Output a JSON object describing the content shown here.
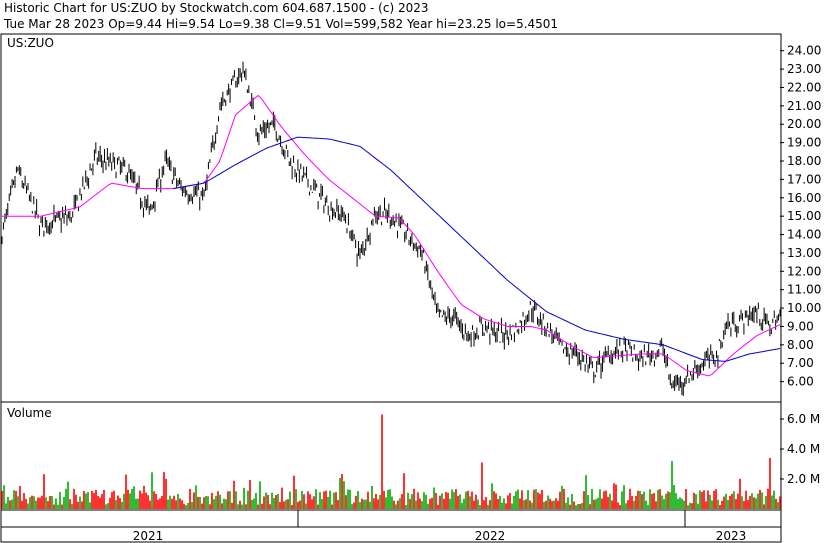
{
  "header": {
    "line1": "Historic Chart for US:ZUO by Stockwatch.com 604.687.1500 - (c) 2023",
    "line2": "Tue Mar 28 2023  Op=9.44  Hi=9.54  Lo=9.38  Cl=9.51  Vol=599,582  Year hi=23.25  lo=5.4501"
  },
  "chart_data": [
    {
      "type": "candlestick",
      "title": "US:ZUO",
      "ylim": [
        5.0,
        24.8
      ],
      "y_ticks": [
        "24.00",
        "23.00",
        "22.00",
        "21.00",
        "20.00",
        "19.00",
        "18.00",
        "17.00",
        "16.00",
        "15.00",
        "14.00",
        "13.00",
        "12.00",
        "11.00",
        "10.00",
        "9.00",
        "8.00",
        "7.00",
        "6.00"
      ],
      "grid": false,
      "x_periods": [
        "2021",
        "2022",
        "2023"
      ],
      "close_anchors": [
        [
          0,
          14.0
        ],
        [
          0.02,
          17.5
        ],
        [
          0.05,
          14.5
        ],
        [
          0.09,
          15.0
        ],
        [
          0.12,
          18.2
        ],
        [
          0.16,
          17.5
        ],
        [
          0.19,
          15.2
        ],
        [
          0.21,
          18.0
        ],
        [
          0.23,
          16.5
        ],
        [
          0.26,
          16.0
        ],
        [
          0.28,
          21.0
        ],
        [
          0.31,
          23.0
        ],
        [
          0.33,
          19.5
        ],
        [
          0.35,
          20.0
        ],
        [
          0.37,
          18.0
        ],
        [
          0.39,
          17.0
        ],
        [
          0.42,
          15.5
        ],
        [
          0.44,
          15.0
        ],
        [
          0.46,
          12.8
        ],
        [
          0.48,
          15.2
        ],
        [
          0.5,
          15.0
        ],
        [
          0.52,
          14.0
        ],
        [
          0.54,
          13.0
        ],
        [
          0.56,
          9.5
        ],
        [
          0.58,
          9.5
        ],
        [
          0.6,
          8.5
        ],
        [
          0.62,
          9.0
        ],
        [
          0.64,
          8.5
        ],
        [
          0.66,
          8.8
        ],
        [
          0.68,
          10.0
        ],
        [
          0.7,
          9.0
        ],
        [
          0.72,
          7.8
        ],
        [
          0.74,
          7.5
        ],
        [
          0.76,
          6.5
        ],
        [
          0.78,
          7.5
        ],
        [
          0.8,
          7.8
        ],
        [
          0.82,
          7.2
        ],
        [
          0.84,
          7.6
        ],
        [
          0.85,
          7.8
        ],
        [
          0.86,
          5.8
        ],
        [
          0.88,
          6.2
        ],
        [
          0.9,
          7.0
        ],
        [
          0.92,
          7.5
        ],
        [
          0.93,
          9.0
        ],
        [
          0.95,
          9.3
        ],
        [
          0.97,
          9.8
        ],
        [
          0.985,
          9.0
        ],
        [
          1.0,
          9.5
        ]
      ],
      "ma_short_anchors": [
        [
          0,
          15.0
        ],
        [
          0.05,
          15.0
        ],
        [
          0.1,
          15.5
        ],
        [
          0.14,
          16.8
        ],
        [
          0.18,
          16.5
        ],
        [
          0.22,
          16.5
        ],
        [
          0.26,
          16.8
        ],
        [
          0.28,
          18.0
        ],
        [
          0.3,
          20.5
        ],
        [
          0.33,
          21.6
        ],
        [
          0.36,
          19.8
        ],
        [
          0.39,
          18.3
        ],
        [
          0.42,
          17.0
        ],
        [
          0.45,
          16.0
        ],
        [
          0.48,
          15.0
        ],
        [
          0.51,
          14.9
        ],
        [
          0.53,
          14.0
        ],
        [
          0.56,
          12.0
        ],
        [
          0.59,
          10.2
        ],
        [
          0.62,
          9.4
        ],
        [
          0.65,
          9.0
        ],
        [
          0.68,
          9.0
        ],
        [
          0.7,
          8.8
        ],
        [
          0.73,
          8.0
        ],
        [
          0.76,
          7.3
        ],
        [
          0.79,
          7.4
        ],
        [
          0.82,
          7.5
        ],
        [
          0.85,
          7.5
        ],
        [
          0.88,
          6.6
        ],
        [
          0.91,
          6.3
        ],
        [
          0.94,
          7.5
        ],
        [
          0.97,
          8.5
        ],
        [
          1.0,
          9.1
        ]
      ],
      "ma_long_anchors": [
        [
          0.22,
          16.5
        ],
        [
          0.26,
          16.8
        ],
        [
          0.3,
          17.8
        ],
        [
          0.34,
          18.7
        ],
        [
          0.38,
          19.3
        ],
        [
          0.42,
          19.2
        ],
        [
          0.46,
          18.8
        ],
        [
          0.5,
          17.5
        ],
        [
          0.55,
          15.5
        ],
        [
          0.6,
          13.5
        ],
        [
          0.65,
          11.5
        ],
        [
          0.7,
          9.8
        ],
        [
          0.75,
          8.8
        ],
        [
          0.8,
          8.3
        ],
        [
          0.85,
          8.0
        ],
        [
          0.9,
          7.2
        ],
        [
          0.93,
          7.1
        ],
        [
          0.96,
          7.5
        ],
        [
          1.0,
          7.8
        ]
      ],
      "colors": {
        "candle": "#000000",
        "ma_short": "#ff00ff",
        "ma_long": "#0000cc"
      }
    },
    {
      "type": "bar",
      "title": "Volume",
      "ylim": [
        0,
        7.0
      ],
      "y_ticks": [
        "6.0 M",
        "4.0 M",
        "2.0 M"
      ],
      "spikes": [
        [
          0.488,
          6.3
        ],
        [
          0.862,
          3.2
        ],
        [
          0.986,
          3.4
        ],
        [
          0.617,
          3.1
        ]
      ],
      "colors": {
        "up": "#00aa00",
        "down": "#ff0000"
      }
    }
  ]
}
